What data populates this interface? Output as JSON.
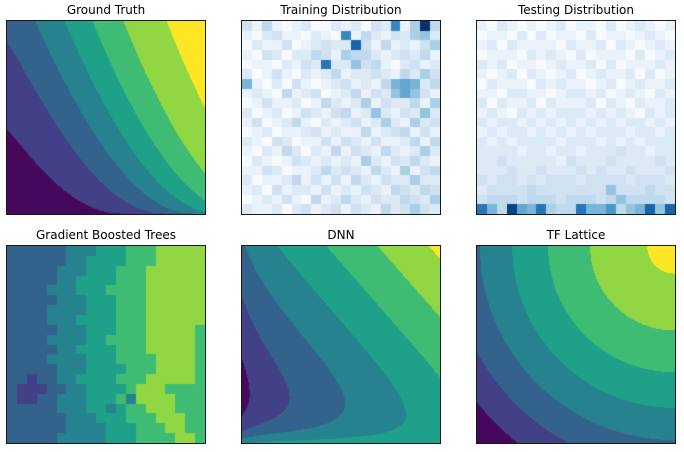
{
  "figure": {
    "background": "#ffffff",
    "axes_border_color": "#1a1a1a",
    "rows": 2,
    "cols": 3
  },
  "colors": {
    "viridis_bands": [
      "#46085c",
      "#424086",
      "#33638d",
      "#26828e",
      "#1fa088",
      "#3fbc73",
      "#90d743",
      "#fde725"
    ],
    "blues_stops": [
      "#f7fbff",
      "#deebf7",
      "#c6dbef",
      "#9ecae1",
      "#6baed6",
      "#4292c6",
      "#2171b5",
      "#08519c",
      "#08306b"
    ]
  },
  "chart_data": [
    {
      "id": "ground_truth",
      "title": "Ground Truth",
      "type": "heatmap",
      "render": "contourf-function",
      "colormap": "viridis",
      "levels": 8,
      "x_range": [
        0,
        1
      ],
      "y_range": [
        0,
        1
      ],
      "grid": "off",
      "function": "z = sigmoid(k*(wx*x^px + wy*y^py) - b)  (monotonic surface, high at top-right, low at bottom-left)",
      "params": {
        "k": 6.6,
        "wx": 0.55,
        "px": 1.1,
        "wy": 0.45,
        "py": 0.5,
        "b": 3.9
      }
    },
    {
      "id": "training_distribution",
      "title": "Training Distribution",
      "type": "heatmap",
      "render": "value-grid",
      "colormap": "Blues",
      "grid_size": [
        20,
        20
      ],
      "value_max": 15,
      "note": "density of training examples; concentrated in upper region, darkest cell at top-right",
      "rows": [
        "314101200212032a15f4",
        "1023110210a142132562",
        "02113012322c31412135",
        "10320224315442123241",
        "01102132b22634102312",
        "20131021241223214253",
        "71020310123121478724",
        "12104123012413268631",
        "01311201421251322415",
        "20120132134126213262",
        "13012410212312521523",
        "01201123121141234131",
        "21032011313213112414",
        "10214202141321421252",
        "02101321212152132421",
        "11320112423214215134",
        "20112413131421322522",
        "12031221312132143243",
        "01213104124213224325",
        "21120231231321423532"
      ]
    },
    {
      "id": "testing_distribution",
      "title": "Testing Distribution",
      "type": "heatmap",
      "render": "value-grid",
      "colormap": "Blues",
      "grid_size": [
        20,
        20
      ],
      "value_max": 15,
      "note": "density of testing examples; concentrated along bottom row",
      "rows": [
        "10210101201102012101",
        "01102020110201101210",
        "12021111021120210121",
        "01110212102011102012",
        "21201101211202011121",
        "10120210120121120201",
        "02111021211012012112",
        "11022110122120121021",
        "20211202111202102112",
        "12102121222121210212",
        "21221212121212122121",
        "12122121212122212212",
        "21212222122212121222",
        "22221221221222322122",
        "22322222132223222232",
        "22232232223232232223",
        "32332323332333323332",
        "23333433333336333433",
        "34443444344434644443",
        "b74e87b544b779467c6c"
      ]
    },
    {
      "id": "gradient_boosted_trees",
      "title": "Gradient Boosted Trees",
      "type": "heatmap",
      "render": "band-grid",
      "colormap": "viridis",
      "levels": 8,
      "grid_size": [
        20,
        20
      ],
      "note": "piecewise-constant blocky prediction, mostly vertical bands with noisy horizontal artifacts near bottom",
      "rows": [
        "22222233344455566666",
        "22222233444455566666",
        "22222333444555666666",
        "22222334444555666666",
        "22223334445555666666",
        "22222333444555666666",
        "22223333444555666666",
        "22223334444555666666",
        "22222333444555666665",
        "22223333445555666665",
        "22222334444555666665",
        "22223333444555566665",
        "22222333444455566665",
        "22122334444555666665",
        "21112233444456665555",
        "21122333444536666555",
        "22222333443455666555",
        "22222233344455566655",
        "22222233334445556655",
        "22222333334445555665"
      ]
    },
    {
      "id": "dnn",
      "title": "DNN",
      "type": "heatmap",
      "render": "contourf-function",
      "colormap": "viridis",
      "levels": 8,
      "x_range": [
        0,
        1
      ],
      "y_range": [
        0,
        1
      ],
      "grid": "off",
      "function": "z = cx*x + cy*y - dipA*e^(-dipK*x) + bumpA*e^(-bumpK*y)*(1-bumpX*x)  (diagonal bands, non-monotonic bump along bottom edge)",
      "params": {
        "cx": 0.48,
        "cy": 0.42,
        "dipA": 0.06,
        "dipK": 12,
        "bumpA": 0.52,
        "bumpK": 10,
        "bumpX": 0.8
      }
    },
    {
      "id": "tf_lattice",
      "title": "TF Lattice",
      "type": "heatmap",
      "render": "contourf-function",
      "colormap": "viridis",
      "levels": 8,
      "x_range": [
        0,
        1
      ],
      "y_range": [
        0,
        1
      ],
      "grid": "off",
      "function": "z = base - amp*r^pow + bumpA*max(0, 1 - r/bumpR), r = dist((x,y),(1,1))/sqrt(2)  (smooth concentric arcs from top-right)",
      "params": {
        "base": 0.9,
        "amp": 0.9,
        "pow": 1.5,
        "bumpA": 0.1,
        "bumpR": 0.1
      }
    }
  ]
}
